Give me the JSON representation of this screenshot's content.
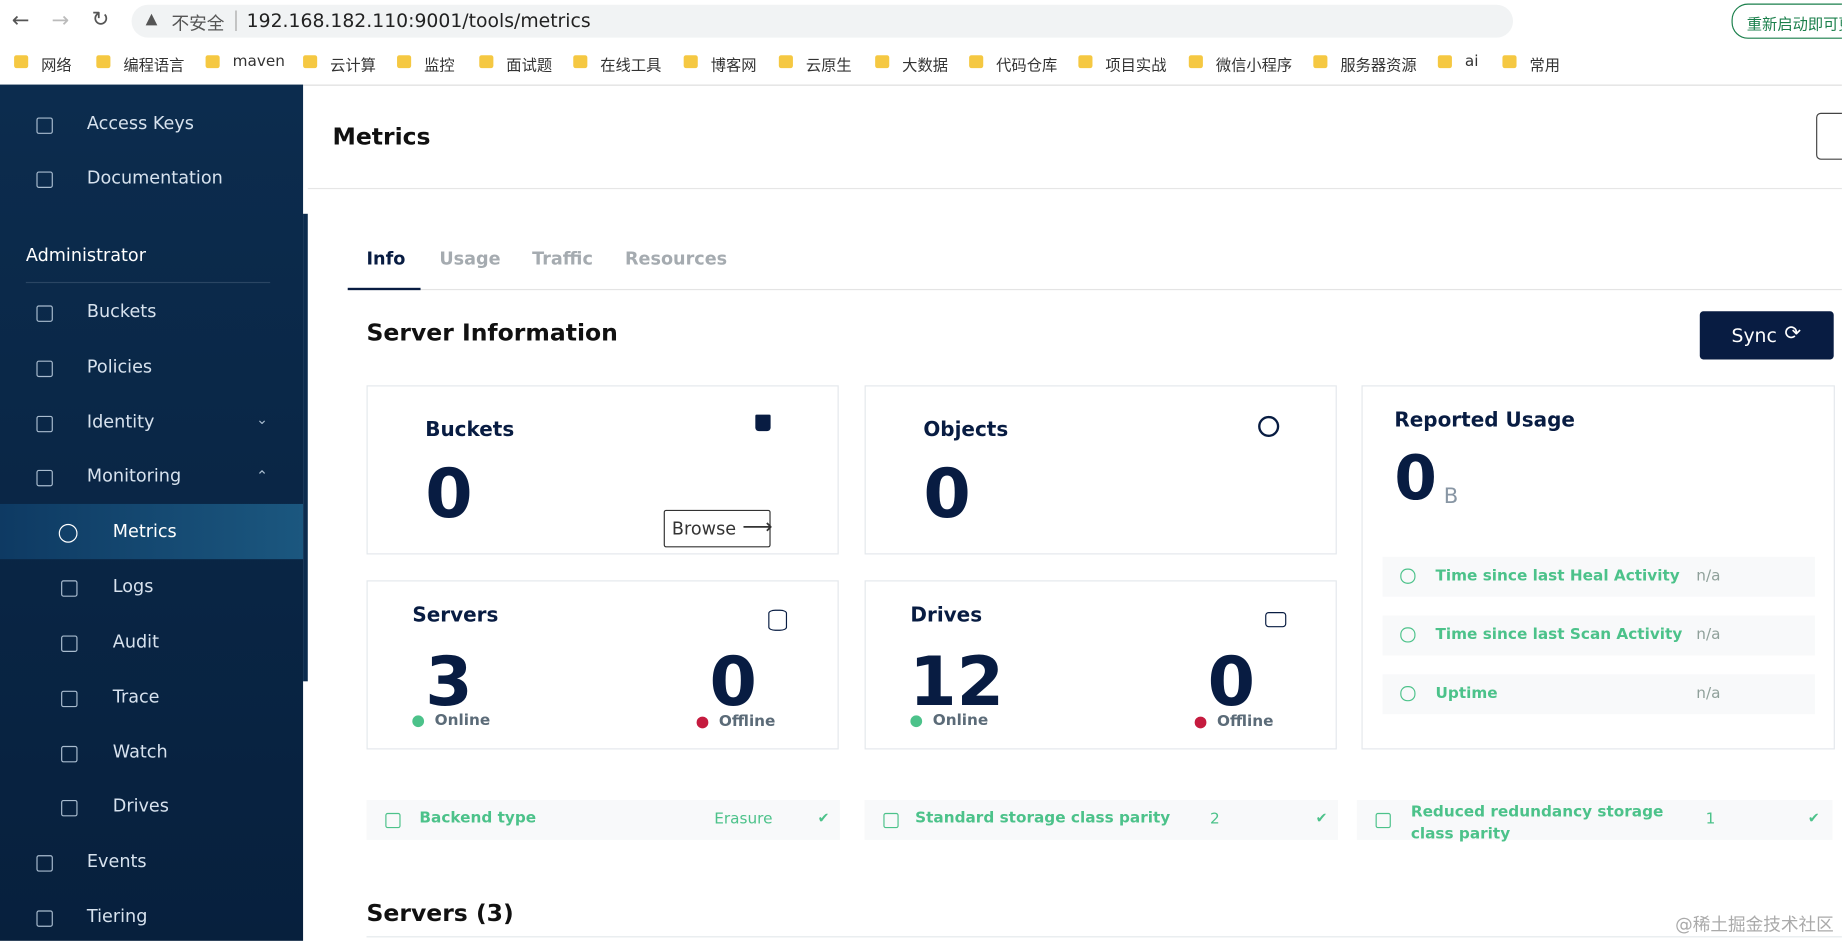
{
  "browser": {
    "security": "不安全",
    "url": "192.168.182.110:9001/tools/metrics",
    "update": "重新启动即可更",
    "bookmarks": [
      "网络",
      "编程语言",
      "maven",
      "云计算",
      "监控",
      "面试题",
      "在线工具",
      "博客网",
      "云原生",
      "大数据",
      "代码仓库",
      "项目实战",
      "微信小程序",
      "服务器资源",
      "ai",
      "常用"
    ]
  },
  "sidebar": {
    "top": [
      "Access Keys",
      "Documentation"
    ],
    "section": "Administrator",
    "items": [
      "Buckets",
      "Policies",
      "Identity",
      "Monitoring"
    ],
    "monitoring": [
      "Metrics",
      "Logs",
      "Audit",
      "Trace",
      "Watch",
      "Drives"
    ],
    "bottom": [
      "Events",
      "Tiering"
    ]
  },
  "header": {
    "title": "Metrics"
  },
  "tabs": [
    "Info",
    "Usage",
    "Traffic",
    "Resources"
  ],
  "section": {
    "title": "Server Information",
    "sync": "Sync"
  },
  "buckets": {
    "label": "Buckets",
    "value": 0,
    "browse": "Browse"
  },
  "objects": {
    "label": "Objects",
    "value": 0
  },
  "usage": {
    "label": "Reported Usage",
    "value": 0,
    "unit": "B",
    "rows": [
      {
        "label": "Time since last Heal Activity",
        "value": "n/a"
      },
      {
        "label": "Time since last Scan Activity",
        "value": "n/a"
      },
      {
        "label": "Uptime",
        "value": "n/a"
      }
    ]
  },
  "servers": {
    "label": "Servers",
    "online": 3,
    "offline": 0,
    "online_label": "Online",
    "offline_label": "Offline"
  },
  "drives": {
    "label": "Drives",
    "online": 12,
    "offline": 0,
    "online_label": "Online",
    "offline_label": "Offline"
  },
  "props": [
    {
      "label": "Backend type",
      "value": "Erasure"
    },
    {
      "label": "Standard storage class parity",
      "value": 2
    },
    {
      "label": "Reduced redundancy storage class parity",
      "value": 1
    }
  ],
  "servers_title": "Servers (3)",
  "watermark": "@稀土掘金技术社区"
}
